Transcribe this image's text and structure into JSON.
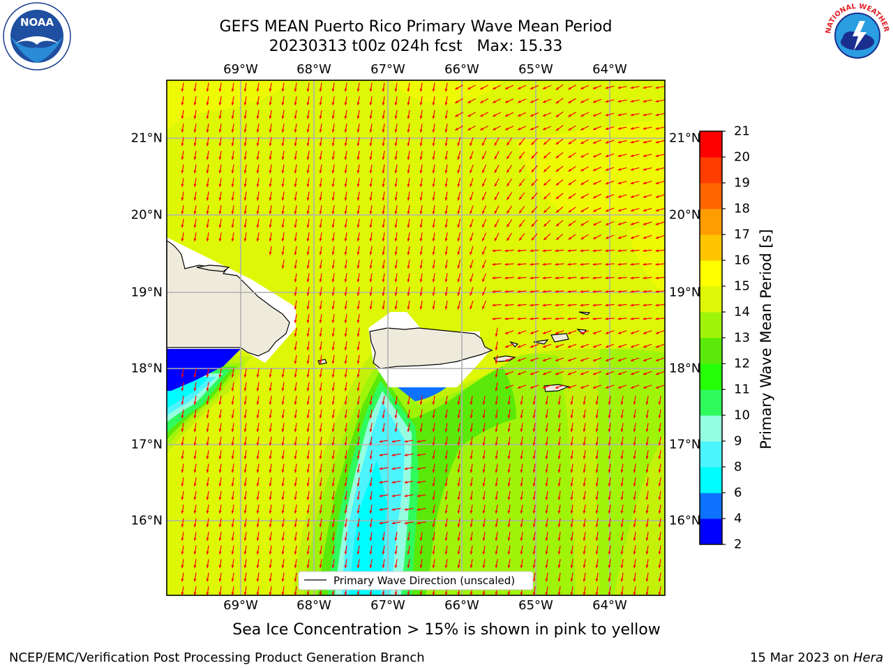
{
  "title": "GEFS MEAN Puerto Rico Primary Wave Mean Period",
  "subtitle": "20230313 t00z 024h fcst   Max: 15.33",
  "lon_labels": [
    "69°W",
    "68°W",
    "67°W",
    "66°W",
    "65°W",
    "64°W"
  ],
  "lat_labels": [
    "21°N",
    "20°N",
    "19°N",
    "18°N",
    "17°N",
    "16°N"
  ],
  "legend_label": "Primary Wave Direction (unscaled)",
  "colorbar": {
    "title": "Primary Wave Mean Period [s]",
    "ticks": [
      "2",
      "4",
      "6",
      "8",
      "9",
      "10",
      "11",
      "12",
      "13",
      "14",
      "15",
      "16",
      "17",
      "18",
      "19",
      "20",
      "21"
    ],
    "colors": [
      "#0000ff",
      "#0c72ff",
      "#00fdfd",
      "#4cf4fd",
      "#96fee0",
      "#30fb5c",
      "#25ff07",
      "#5ae908",
      "#a0f40a",
      "#ddf707",
      "#ffff00",
      "#ffc600",
      "#ff9c00",
      "#ff6600",
      "#ff3d00",
      "#ff0000"
    ]
  },
  "sea_ice_note": "Sea Ice Concentration > 15% is shown in pink to yellow",
  "footer_left": "NCEP/EMC/Verification Post Processing Product Generation Branch",
  "footer_right_date": "15 Mar 2023 on ",
  "footer_right_machine": "Hera",
  "logos": {
    "left": "NOAA",
    "right": "NATIONAL WEATHER SERVICE"
  }
}
